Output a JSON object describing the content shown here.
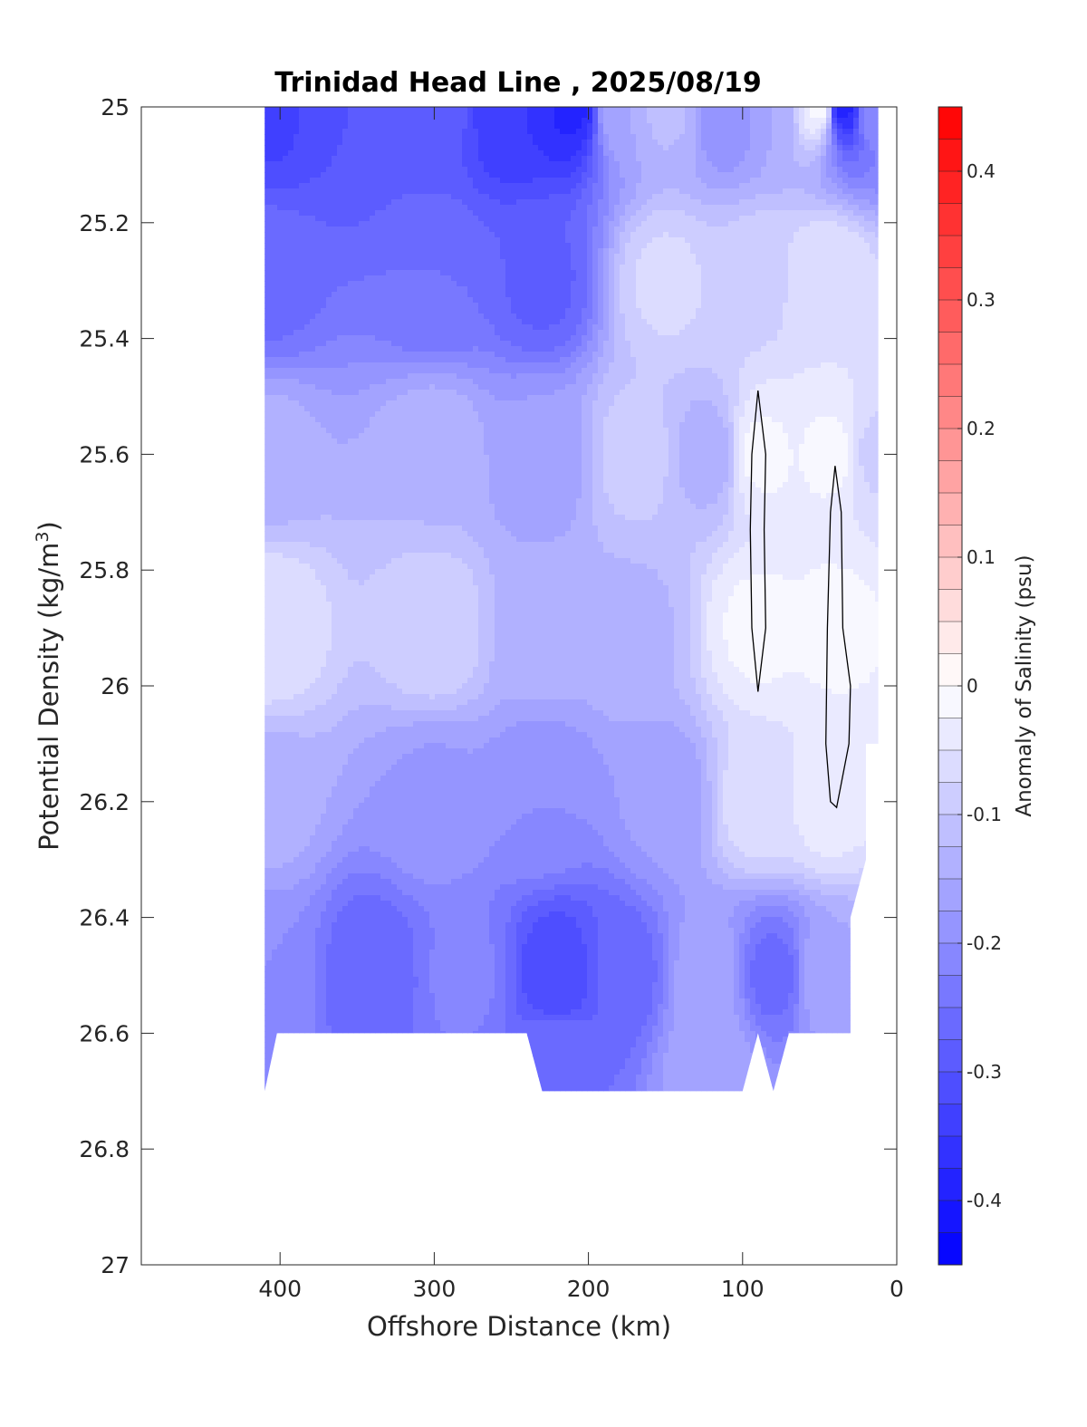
{
  "chart_data": {
    "type": "heatmap",
    "subtype": "filled-contour",
    "title": "Trinidad Head Line , 2025/08/19",
    "xlabel": "Offshore Distance (km)",
    "ylabel_main": "Potential Density (kg/m",
    "ylabel_sup": "3",
    "ylabel_tail": ")",
    "xlim": [
      490,
      0
    ],
    "x_reversed": true,
    "ylim": [
      25,
      27
    ],
    "y_reversed": true,
    "xticks": [
      400,
      300,
      200,
      100,
      0
    ],
    "xtick_labels": [
      "400",
      "300",
      "200",
      "100",
      "0"
    ],
    "yticks": [
      25,
      25.2,
      25.4,
      25.6,
      25.8,
      26,
      26.2,
      26.4,
      26.6,
      26.8,
      27
    ],
    "ytick_labels": [
      "25",
      "25.2",
      "25.4",
      "25.6",
      "25.8",
      "26",
      "26.2",
      "26.4",
      "26.6",
      "26.8",
      "27"
    ],
    "colorbar": {
      "label": "Anomaly of Salinity (psu)",
      "range": [
        -0.45,
        0.45
      ],
      "levels": 36,
      "ticks": [
        0.4,
        0.3,
        0.2,
        0.1,
        0,
        -0.1,
        -0.2,
        -0.3,
        -0.4
      ],
      "tick_labels": [
        "0.4",
        "0.3",
        "0.2",
        "0.1",
        "0",
        "-0.1",
        "-0.2",
        "-0.3",
        "-0.4"
      ],
      "colormap": "blue-white-red",
      "color_low": "#0000ff",
      "color_mid": "#ffffff",
      "color_high": "#ff0000"
    },
    "grid": false,
    "data_extent": {
      "x_range": [
        410,
        12
      ],
      "y_top": 25,
      "bottom_boundary": [
        [
          410,
          26.7
        ],
        [
          402,
          26.6
        ],
        [
          240,
          26.6
        ],
        [
          230,
          26.7
        ],
        [
          100,
          26.7
        ],
        [
          90,
          26.6
        ],
        [
          80,
          26.7
        ],
        [
          70,
          26.6
        ],
        [
          30,
          26.6
        ],
        [
          30,
          26.4
        ],
        [
          20,
          26.3
        ],
        [
          20,
          26.1
        ],
        [
          12,
          26.1
        ],
        [
          12,
          25
        ]
      ]
    },
    "field_description": "Salinity anomaly mostly negative (-0.05 to -0.35 psu). Strongest negatives near surface (25.0-25.2) around 200-250 km and near 30-40 km, and at depth (26.4-26.6) near 220 km. Near-zero anomalies form vertical bands near 150 km, 90 km and 40 km.",
    "anomaly_points": [
      {
        "x": 410,
        "y": 25.0,
        "v": -0.33
      },
      {
        "x": 350,
        "y": 25.0,
        "v": -0.3
      },
      {
        "x": 300,
        "y": 25.0,
        "v": -0.29
      },
      {
        "x": 250,
        "y": 25.0,
        "v": -0.35
      },
      {
        "x": 210,
        "y": 25.0,
        "v": -0.38
      },
      {
        "x": 180,
        "y": 25.0,
        "v": -0.15
      },
      {
        "x": 150,
        "y": 25.0,
        "v": -0.12
      },
      {
        "x": 110,
        "y": 25.0,
        "v": -0.2
      },
      {
        "x": 80,
        "y": 25.0,
        "v": -0.15
      },
      {
        "x": 50,
        "y": 25.0,
        "v": -0.02
      },
      {
        "x": 35,
        "y": 25.0,
        "v": -0.38
      },
      {
        "x": 15,
        "y": 25.0,
        "v": -0.2
      },
      {
        "x": 410,
        "y": 25.3,
        "v": -0.26
      },
      {
        "x": 300,
        "y": 25.3,
        "v": -0.25
      },
      {
        "x": 230,
        "y": 25.3,
        "v": -0.28
      },
      {
        "x": 150,
        "y": 25.3,
        "v": -0.07
      },
      {
        "x": 90,
        "y": 25.3,
        "v": -0.08
      },
      {
        "x": 45,
        "y": 25.3,
        "v": -0.05
      },
      {
        "x": 410,
        "y": 25.6,
        "v": -0.14
      },
      {
        "x": 300,
        "y": 25.6,
        "v": -0.13
      },
      {
        "x": 230,
        "y": 25.6,
        "v": -0.17
      },
      {
        "x": 170,
        "y": 25.6,
        "v": -0.09
      },
      {
        "x": 120,
        "y": 25.6,
        "v": -0.14
      },
      {
        "x": 90,
        "y": 25.6,
        "v": -0.02
      },
      {
        "x": 40,
        "y": 25.6,
        "v": -0.02
      },
      {
        "x": 15,
        "y": 25.6,
        "v": -0.08
      },
      {
        "x": 410,
        "y": 25.9,
        "v": -0.05
      },
      {
        "x": 300,
        "y": 25.9,
        "v": -0.08
      },
      {
        "x": 230,
        "y": 25.9,
        "v": -0.14
      },
      {
        "x": 170,
        "y": 25.9,
        "v": -0.13
      },
      {
        "x": 90,
        "y": 25.9,
        "v": -0.02
      },
      {
        "x": 40,
        "y": 25.9,
        "v": -0.02
      },
      {
        "x": 410,
        "y": 26.2,
        "v": -0.14
      },
      {
        "x": 300,
        "y": 26.2,
        "v": -0.18
      },
      {
        "x": 230,
        "y": 26.2,
        "v": -0.2
      },
      {
        "x": 150,
        "y": 26.2,
        "v": -0.17
      },
      {
        "x": 90,
        "y": 26.2,
        "v": -0.06
      },
      {
        "x": 45,
        "y": 26.2,
        "v": -0.04
      },
      {
        "x": 410,
        "y": 26.5,
        "v": -0.2
      },
      {
        "x": 340,
        "y": 26.5,
        "v": -0.27
      },
      {
        "x": 280,
        "y": 26.5,
        "v": -0.22
      },
      {
        "x": 220,
        "y": 26.5,
        "v": -0.32
      },
      {
        "x": 180,
        "y": 26.5,
        "v": -0.27
      },
      {
        "x": 120,
        "y": 26.5,
        "v": -0.16
      },
      {
        "x": 80,
        "y": 26.5,
        "v": -0.26
      },
      {
        "x": 45,
        "y": 26.5,
        "v": -0.15
      },
      {
        "x": 220,
        "y": 26.65,
        "v": -0.25
      },
      {
        "x": 120,
        "y": 26.65,
        "v": -0.15
      }
    ],
    "zero_contours": [
      [
        [
          90,
          25.49
        ],
        [
          85,
          25.6
        ],
        [
          86,
          25.73
        ],
        [
          85,
          25.9
        ],
        [
          90,
          26.01
        ],
        [
          94,
          25.9
        ],
        [
          95,
          25.73
        ],
        [
          94,
          25.6
        ]
      ],
      [
        [
          40,
          25.62
        ],
        [
          36,
          25.7
        ],
        [
          35,
          25.9
        ],
        [
          30,
          26.0
        ],
        [
          31,
          26.1
        ],
        [
          39,
          26.21
        ],
        [
          43,
          26.2
        ],
        [
          46,
          26.1
        ],
        [
          45,
          25.9
        ],
        [
          43,
          25.7
        ]
      ]
    ]
  }
}
